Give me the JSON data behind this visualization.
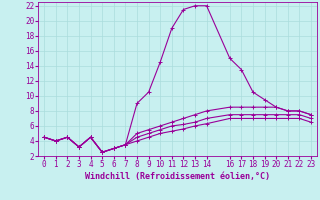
{
  "background_color": "#c8f0f0",
  "line_color": "#990099",
  "xlim": [
    -0.5,
    23.5
  ],
  "ylim": [
    2,
    22.5
  ],
  "xticks": [
    0,
    1,
    2,
    3,
    4,
    5,
    6,
    7,
    8,
    9,
    10,
    11,
    12,
    13,
    14,
    16,
    17,
    18,
    19,
    20,
    21,
    22,
    23
  ],
  "yticks": [
    2,
    4,
    6,
    8,
    10,
    12,
    14,
    16,
    18,
    20,
    22
  ],
  "grid_color": "#aadddd",
  "lines": [
    {
      "x": [
        0,
        1,
        2,
        3,
        4,
        5,
        6,
        7,
        8,
        9,
        10,
        11,
        12,
        13,
        14,
        16,
        17,
        18,
        19,
        20,
        21,
        22,
        23
      ],
      "y": [
        4.5,
        4.0,
        4.5,
        3.2,
        4.5,
        2.5,
        3.0,
        3.5,
        9.0,
        10.5,
        14.5,
        19.0,
        21.5,
        22.0,
        22.0,
        15.0,
        13.5,
        10.5,
        9.5,
        8.5,
        8.0,
        8.0,
        7.5
      ]
    },
    {
      "x": [
        0,
        1,
        2,
        3,
        4,
        5,
        6,
        7,
        8,
        9,
        10,
        11,
        12,
        13,
        14,
        16,
        17,
        18,
        19,
        20,
        21,
        22,
        23
      ],
      "y": [
        4.5,
        4.0,
        4.5,
        3.2,
        4.5,
        2.5,
        3.0,
        3.5,
        5.0,
        5.5,
        6.0,
        6.5,
        7.0,
        7.5,
        8.0,
        8.5,
        8.5,
        8.5,
        8.5,
        8.5,
        8.0,
        8.0,
        7.5
      ]
    },
    {
      "x": [
        0,
        1,
        2,
        3,
        4,
        5,
        6,
        7,
        8,
        9,
        10,
        11,
        12,
        13,
        14,
        16,
        17,
        18,
        19,
        20,
        21,
        22,
        23
      ],
      "y": [
        4.5,
        4.0,
        4.5,
        3.2,
        4.5,
        2.5,
        3.0,
        3.5,
        4.5,
        5.0,
        5.5,
        6.0,
        6.2,
        6.5,
        7.0,
        7.5,
        7.5,
        7.5,
        7.5,
        7.5,
        7.5,
        7.5,
        7.0
      ]
    },
    {
      "x": [
        0,
        1,
        2,
        3,
        4,
        5,
        6,
        7,
        8,
        9,
        10,
        11,
        12,
        13,
        14,
        16,
        17,
        18,
        19,
        20,
        21,
        22,
        23
      ],
      "y": [
        4.5,
        4.0,
        4.5,
        3.2,
        4.5,
        2.5,
        3.0,
        3.5,
        4.0,
        4.5,
        5.0,
        5.3,
        5.6,
        6.0,
        6.3,
        7.0,
        7.0,
        7.0,
        7.0,
        7.0,
        7.0,
        7.0,
        6.5
      ]
    }
  ],
  "marker": "+",
  "markersize": 3,
  "linewidth": 0.8,
  "xlabel_fontsize": 6,
  "tick_fontsize": 5.5,
  "xlabel": "Windchill (Refroidissement éolien,°C)"
}
